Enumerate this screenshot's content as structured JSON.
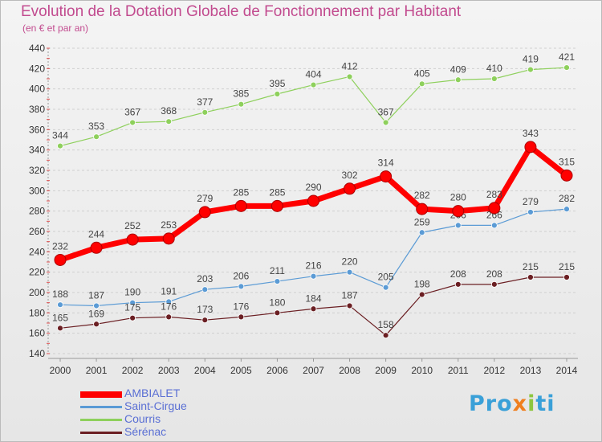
{
  "title": "Evolution de la Dotation Globale de Fonctionnement par Habitant",
  "subtitle": "(en € et par an)",
  "logo": {
    "p1": "Pro",
    "p2": "x",
    "p3": "i",
    "p4": "ti"
  },
  "chart_data": {
    "type": "line",
    "title": "Evolution de la Dotation Globale de Fonctionnement par Habitant",
    "subtitle": "(en € et par an)",
    "x": [
      "2000",
      "2001",
      "2002",
      "2003",
      "2004",
      "2005",
      "2006",
      "2007",
      "2008",
      "2009",
      "2010",
      "2011",
      "2012",
      "2013",
      "2014"
    ],
    "y_ticks": [
      140,
      160,
      180,
      200,
      220,
      240,
      260,
      280,
      300,
      320,
      340,
      360,
      380,
      400,
      420,
      440
    ],
    "ylim": [
      140,
      440
    ],
    "grid": "horizontal-dashed",
    "legend_position": "bottom-left",
    "series": [
      {
        "name": "AMBIALET",
        "color": "#ff0000",
        "values": [
          232,
          244,
          252,
          253,
          279,
          285,
          285,
          290,
          302,
          314,
          282,
          280,
          283,
          343,
          315
        ]
      },
      {
        "name": "Saint-Cirgue",
        "color": "#5b9bd5",
        "values": [
          188,
          187,
          190,
          191,
          203,
          206,
          211,
          216,
          220,
          205,
          259,
          266,
          266,
          279,
          282
        ]
      },
      {
        "name": "Courris",
        "color": "#8ed05c",
        "values": [
          344,
          353,
          367,
          368,
          377,
          385,
          395,
          404,
          412,
          367,
          405,
          409,
          410,
          419,
          421
        ]
      },
      {
        "name": "Sérénac",
        "color": "#6b1f23",
        "values": [
          165,
          169,
          175,
          176,
          173,
          176,
          180,
          184,
          187,
          158,
          198,
          208,
          208,
          215,
          215
        ]
      }
    ]
  }
}
